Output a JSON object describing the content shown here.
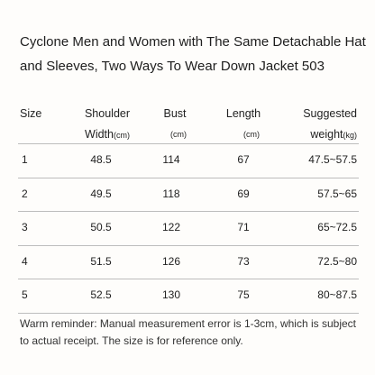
{
  "title": [
    "Cyclone Men and Women with The Same Detachable Hat",
    "and Sleeves, Two Ways To Wear Down Jacket 503"
  ],
  "table": {
    "headers": [
      {
        "label": "Size"
      },
      {
        "label": "Shoulder Width",
        "unit": "(cm)"
      },
      {
        "label": "Bust",
        "unit": "(cm)"
      },
      {
        "label": "Length",
        "unit": "(cm)"
      },
      {
        "label": "Suggested weight",
        "unit": "(kg)"
      }
    ],
    "rows": [
      [
        "1",
        "48.5",
        "114",
        "67",
        "47.5~57.5"
      ],
      [
        "2",
        "49.5",
        "118",
        "69",
        "57.5~65"
      ],
      [
        "3",
        "50.5",
        "122",
        "71",
        "65~72.5"
      ],
      [
        "4",
        "51.5",
        "126",
        "73",
        "72.5~80"
      ],
      [
        "5",
        "52.5",
        "130",
        "75",
        "80~87.5"
      ]
    ]
  },
  "note": "Warm reminder: Manual measurement error is 1-3cm, which is subject to actual receipt. The size is for reference only."
}
